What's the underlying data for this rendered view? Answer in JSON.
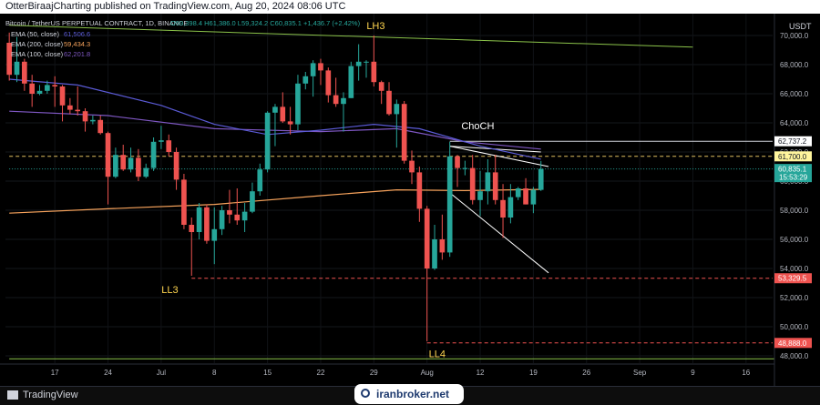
{
  "publisher": {
    "text": "OtterBiraajCharting published on TradingView.com, Aug 20, 2024 08:06 UTC"
  },
  "legend": {
    "symbol": "Bitcoin / TetherUS PERPETUAL CONTRACT, 1D, BINANCE",
    "ohlc": "O59,398.4 H61,386.0 L59,324.2 C60,835.1 +1,436.7 (+2.42%)",
    "ema50": "EMA (50, close)",
    "ema50_val": "61,506.6",
    "ema200": "EMA (200, close)",
    "ema200_val": "59,434.3",
    "ema100": "EMA (100, close)",
    "ema100_val": "62,201.8"
  },
  "currency": "USDT",
  "footer": {
    "brand": "TradingView",
    "watermark": "iranbroker.net"
  },
  "annotations": {
    "lh3": "LH3",
    "choch": "ChoCH",
    "ll3": "LL3",
    "ll4": "LL4"
  },
  "colors": {
    "bull": "#26a69a",
    "bear": "#ef5350",
    "ema50": "#5b5bd6",
    "ema100": "#7e57c2",
    "ema200": "#f7a35c",
    "trendline": "#8bc34a",
    "label_yellow": "#ffd54f"
  },
  "chart_data": {
    "type": "candlestick",
    "ylim": [
      47500,
      71500
    ],
    "ymin_label": 48000,
    "ymax_label": 70000,
    "ystep": 2000,
    "x_start": "2024-06-11",
    "x_end": "2024-09-20",
    "x_ticks": [
      {
        "date": "2024-06-17",
        "label": "17"
      },
      {
        "date": "2024-06-24",
        "label": "24"
      },
      {
        "date": "2024-07-01",
        "label": "Jul"
      },
      {
        "date": "2024-07-08",
        "label": "8"
      },
      {
        "date": "2024-07-15",
        "label": "15"
      },
      {
        "date": "2024-07-22",
        "label": "22"
      },
      {
        "date": "2024-07-29",
        "label": "29"
      },
      {
        "date": "2024-08-05",
        "label": "Aug"
      },
      {
        "date": "2024-08-12",
        "label": "12"
      },
      {
        "date": "2024-08-19",
        "label": "19"
      },
      {
        "date": "2024-08-26",
        "label": "26"
      },
      {
        "date": "2024-09-02",
        "label": "Sep"
      },
      {
        "date": "2024-09-09",
        "label": "9"
      },
      {
        "date": "2024-09-16",
        "label": "16"
      }
    ],
    "candles": [
      {
        "date": "2024-06-11",
        "o": 69500,
        "h": 70200,
        "l": 66900,
        "c": 67300
      },
      {
        "date": "2024-06-12",
        "o": 67300,
        "h": 69900,
        "l": 66800,
        "c": 68200
      },
      {
        "date": "2024-06-13",
        "o": 68200,
        "h": 68400,
        "l": 66200,
        "c": 66700
      },
      {
        "date": "2024-06-14",
        "o": 66700,
        "h": 67300,
        "l": 65100,
        "c": 66000
      },
      {
        "date": "2024-06-15",
        "o": 66000,
        "h": 66600,
        "l": 65900,
        "c": 66200
      },
      {
        "date": "2024-06-16",
        "o": 66200,
        "h": 66900,
        "l": 66000,
        "c": 66600
      },
      {
        "date": "2024-06-17",
        "o": 66600,
        "h": 67200,
        "l": 65100,
        "c": 66500
      },
      {
        "date": "2024-06-18",
        "o": 66500,
        "h": 66600,
        "l": 64100,
        "c": 65200
      },
      {
        "date": "2024-06-19",
        "o": 65200,
        "h": 65700,
        "l": 64600,
        "c": 64900
      },
      {
        "date": "2024-06-20",
        "o": 64900,
        "h": 66500,
        "l": 64500,
        "c": 64800
      },
      {
        "date": "2024-06-21",
        "o": 64800,
        "h": 65000,
        "l": 63400,
        "c": 64100
      },
      {
        "date": "2024-06-22",
        "o": 64100,
        "h": 64500,
        "l": 63900,
        "c": 64200
      },
      {
        "date": "2024-06-23",
        "o": 64200,
        "h": 64500,
        "l": 63200,
        "c": 63300
      },
      {
        "date": "2024-06-24",
        "o": 63300,
        "h": 63400,
        "l": 58400,
        "c": 60300
      },
      {
        "date": "2024-06-25",
        "o": 60300,
        "h": 62300,
        "l": 60200,
        "c": 61800
      },
      {
        "date": "2024-06-26",
        "o": 61800,
        "h": 62500,
        "l": 60700,
        "c": 60800
      },
      {
        "date": "2024-06-27",
        "o": 60800,
        "h": 62300,
        "l": 60600,
        "c": 61600
      },
      {
        "date": "2024-06-28",
        "o": 61600,
        "h": 62200,
        "l": 60000,
        "c": 60300
      },
      {
        "date": "2024-06-29",
        "o": 60300,
        "h": 61200,
        "l": 60200,
        "c": 60900
      },
      {
        "date": "2024-06-30",
        "o": 60900,
        "h": 63000,
        "l": 60700,
        "c": 62700
      },
      {
        "date": "2024-07-01",
        "o": 62700,
        "h": 63800,
        "l": 62200,
        "c": 62800
      },
      {
        "date": "2024-07-02",
        "o": 62800,
        "h": 63200,
        "l": 61700,
        "c": 62000
      },
      {
        "date": "2024-07-03",
        "o": 62000,
        "h": 62300,
        "l": 59400,
        "c": 60100
      },
      {
        "date": "2024-07-04",
        "o": 60100,
        "h": 60500,
        "l": 56700,
        "c": 57000
      },
      {
        "date": "2024-07-05",
        "o": 57000,
        "h": 57500,
        "l": 53500,
        "c": 56500
      },
      {
        "date": "2024-07-06",
        "o": 56500,
        "h": 58500,
        "l": 56000,
        "c": 58200
      },
      {
        "date": "2024-07-07",
        "o": 58200,
        "h": 58400,
        "l": 55700,
        "c": 55900
      },
      {
        "date": "2024-07-08",
        "o": 55900,
        "h": 58200,
        "l": 54300,
        "c": 56700
      },
      {
        "date": "2024-07-09",
        "o": 56700,
        "h": 58300,
        "l": 56300,
        "c": 58000
      },
      {
        "date": "2024-07-10",
        "o": 58000,
        "h": 59400,
        "l": 57100,
        "c": 57700
      },
      {
        "date": "2024-07-11",
        "o": 57700,
        "h": 59500,
        "l": 57000,
        "c": 57300
      },
      {
        "date": "2024-07-12",
        "o": 57300,
        "h": 58500,
        "l": 56500,
        "c": 57900
      },
      {
        "date": "2024-07-13",
        "o": 57900,
        "h": 59900,
        "l": 57800,
        "c": 59300
      },
      {
        "date": "2024-07-14",
        "o": 59300,
        "h": 61200,
        "l": 59000,
        "c": 60800
      },
      {
        "date": "2024-07-15",
        "o": 60800,
        "h": 64800,
        "l": 60600,
        "c": 64700
      },
      {
        "date": "2024-07-16",
        "o": 64700,
        "h": 65300,
        "l": 62400,
        "c": 65100
      },
      {
        "date": "2024-07-17",
        "o": 65100,
        "h": 66100,
        "l": 64000,
        "c": 64100
      },
      {
        "date": "2024-07-18",
        "o": 64100,
        "h": 65100,
        "l": 63200,
        "c": 63900
      },
      {
        "date": "2024-07-19",
        "o": 63900,
        "h": 67300,
        "l": 63500,
        "c": 66700
      },
      {
        "date": "2024-07-20",
        "o": 66700,
        "h": 67500,
        "l": 66300,
        "c": 67200
      },
      {
        "date": "2024-07-21",
        "o": 67200,
        "h": 68300,
        "l": 65800,
        "c": 68100
      },
      {
        "date": "2024-07-22",
        "o": 68100,
        "h": 68400,
        "l": 66600,
        "c": 67600
      },
      {
        "date": "2024-07-23",
        "o": 67600,
        "h": 67800,
        "l": 65400,
        "c": 65900
      },
      {
        "date": "2024-07-24",
        "o": 65900,
        "h": 67100,
        "l": 65100,
        "c": 65300
      },
      {
        "date": "2024-07-25",
        "o": 65300,
        "h": 66100,
        "l": 63400,
        "c": 65700
      },
      {
        "date": "2024-07-26",
        "o": 65700,
        "h": 68200,
        "l": 65700,
        "c": 67900
      },
      {
        "date": "2024-07-27",
        "o": 67900,
        "h": 69400,
        "l": 66900,
        "c": 68200
      },
      {
        "date": "2024-07-28",
        "o": 68200,
        "h": 68300,
        "l": 67100,
        "c": 68200
      },
      {
        "date": "2024-07-29",
        "o": 68200,
        "h": 70000,
        "l": 66500,
        "c": 66800
      },
      {
        "date": "2024-07-30",
        "o": 66800,
        "h": 66900,
        "l": 65300,
        "c": 66200
      },
      {
        "date": "2024-07-31",
        "o": 66200,
        "h": 66800,
        "l": 64500,
        "c": 64600
      },
      {
        "date": "2024-08-01",
        "o": 64600,
        "h": 65600,
        "l": 62300,
        "c": 65300
      },
      {
        "date": "2024-08-02",
        "o": 65300,
        "h": 65500,
        "l": 61200,
        "c": 61400
      },
      {
        "date": "2024-08-03",
        "o": 61400,
        "h": 62100,
        "l": 59800,
        "c": 60600
      },
      {
        "date": "2024-08-04",
        "o": 60600,
        "h": 61000,
        "l": 57200,
        "c": 58100
      },
      {
        "date": "2024-08-05",
        "o": 58100,
        "h": 58300,
        "l": 49000,
        "c": 54000
      },
      {
        "date": "2024-08-06",
        "o": 54000,
        "h": 57000,
        "l": 53900,
        "c": 56000
      },
      {
        "date": "2024-08-07",
        "o": 56000,
        "h": 57700,
        "l": 54600,
        "c": 55100
      },
      {
        "date": "2024-08-08",
        "o": 55100,
        "h": 62700,
        "l": 54800,
        "c": 61700
      },
      {
        "date": "2024-08-09",
        "o": 61700,
        "h": 61800,
        "l": 59600,
        "c": 60900
      },
      {
        "date": "2024-08-10",
        "o": 60900,
        "h": 61400,
        "l": 60400,
        "c": 60900
      },
      {
        "date": "2024-08-11",
        "o": 60900,
        "h": 61800,
        "l": 58400,
        "c": 58700
      },
      {
        "date": "2024-08-12",
        "o": 58700,
        "h": 60700,
        "l": 57600,
        "c": 59300
      },
      {
        "date": "2024-08-13",
        "o": 59300,
        "h": 61500,
        "l": 58400,
        "c": 60600
      },
      {
        "date": "2024-08-14",
        "o": 60600,
        "h": 61800,
        "l": 58400,
        "c": 58700
      },
      {
        "date": "2024-08-15",
        "o": 58700,
        "h": 59800,
        "l": 56100,
        "c": 57500
      },
      {
        "date": "2024-08-16",
        "o": 57500,
        "h": 59800,
        "l": 57100,
        "c": 58900
      },
      {
        "date": "2024-08-17",
        "o": 58900,
        "h": 59600,
        "l": 58700,
        "c": 59500
      },
      {
        "date": "2024-08-18",
        "o": 59500,
        "h": 60200,
        "l": 58400,
        "c": 58400
      },
      {
        "date": "2024-08-19",
        "o": 58400,
        "h": 59600,
        "l": 57800,
        "c": 59400
      },
      {
        "date": "2024-08-20",
        "o": 59398.4,
        "h": 61386.0,
        "l": 59324.2,
        "c": 60835.1
      }
    ],
    "ema": {
      "ema50": [
        {
          "date": "2024-06-11",
          "v": 67000
        },
        {
          "date": "2024-06-20",
          "v": 66600
        },
        {
          "date": "2024-07-01",
          "v": 65200
        },
        {
          "date": "2024-07-08",
          "v": 63900
        },
        {
          "date": "2024-07-15",
          "v": 63200
        },
        {
          "date": "2024-07-22",
          "v": 63500
        },
        {
          "date": "2024-07-29",
          "v": 63900
        },
        {
          "date": "2024-08-04",
          "v": 63600
        },
        {
          "date": "2024-08-12",
          "v": 62400
        },
        {
          "date": "2024-08-20",
          "v": 61506.6
        }
      ],
      "ema100": [
        {
          "date": "2024-06-11",
          "v": 64800
        },
        {
          "date": "2024-06-24",
          "v": 64500
        },
        {
          "date": "2024-07-08",
          "v": 63600
        },
        {
          "date": "2024-07-22",
          "v": 63400
        },
        {
          "date": "2024-08-01",
          "v": 63600
        },
        {
          "date": "2024-08-10",
          "v": 62700
        },
        {
          "date": "2024-08-20",
          "v": 62201.8
        }
      ],
      "ema200": [
        {
          "date": "2024-06-11",
          "v": 57800
        },
        {
          "date": "2024-06-24",
          "v": 58100
        },
        {
          "date": "2024-07-08",
          "v": 58400
        },
        {
          "date": "2024-07-22",
          "v": 59000
        },
        {
          "date": "2024-08-01",
          "v": 59400
        },
        {
          "date": "2024-08-10",
          "v": 59350
        },
        {
          "date": "2024-08-20",
          "v": 59434.3
        }
      ]
    },
    "price_labels": [
      {
        "value": 62737.2,
        "label": "62,737.2",
        "bg": "#ffffff",
        "fg": "#131722"
      },
      {
        "value": 61700.0,
        "label": "61,700.0",
        "bg": "#fff59d",
        "fg": "#131722"
      },
      {
        "value": 60835.1,
        "label": "60,835.1",
        "sublabel": "15:53:29",
        "bg": "#26a69a",
        "fg": "#ffffff"
      },
      {
        "value": 53329.5,
        "label": "53,329.5",
        "bg": "#ef5350",
        "fg": "#ffffff"
      },
      {
        "value": 48888.0,
        "label": "48,888.0",
        "bg": "#ef5350",
        "fg": "#ffffff"
      }
    ],
    "levels": [
      {
        "value": 62737.2,
        "from": "2024-08-08",
        "style": "solid",
        "color": "#d1d4dc"
      },
      {
        "value": 61700.0,
        "from": "2024-06-11",
        "style": "dashed",
        "color": "#e0c060"
      },
      {
        "value": 60835.1,
        "from": "2024-06-11",
        "style": "dotted",
        "color": "#26a69a"
      },
      {
        "value": 53329.5,
        "from": "2024-07-05",
        "style": "dashed",
        "color": "#ef5350"
      },
      {
        "value": 48888.0,
        "from": "2024-08-05",
        "style": "dashed",
        "color": "#ef5350"
      }
    ],
    "trendlines": [
      {
        "from": {
          "date": "2024-06-11",
          "v": 70700
        },
        "to": {
          "date": "2024-09-09",
          "v": 69200
        },
        "color": "#8bc34a"
      },
      {
        "from": {
          "date": "2024-06-11",
          "v": 47800
        },
        "to": {
          "date": "2024-09-20",
          "v": 47800
        },
        "color": "#8bc34a"
      },
      {
        "from": {
          "date": "2024-08-08",
          "v": 62400
        },
        "to": {
          "date": "2024-08-21",
          "v": 61000
        },
        "color": "#ffffff"
      },
      {
        "from": {
          "date": "2024-08-08",
          "v": 62400
        },
        "to": {
          "date": "2024-08-20",
          "v": 62000
        },
        "color": "#ffffff"
      },
      {
        "from": {
          "date": "2024-08-08",
          "v": 59200
        },
        "to": {
          "date": "2024-08-21",
          "v": 53700
        },
        "color": "#ffffff"
      }
    ]
  }
}
